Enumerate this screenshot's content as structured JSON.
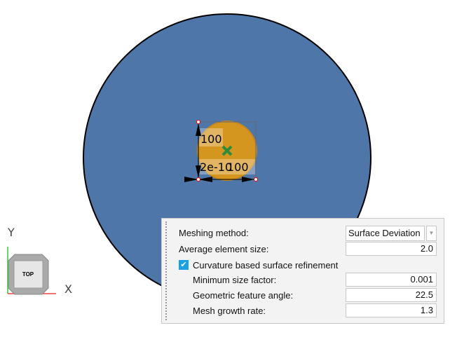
{
  "viewport": {
    "colors": {
      "surface": "#4f76a9",
      "feature": "#d4961f",
      "center_marker": "#2e8b3a"
    },
    "dimensions": {
      "vertical": "100",
      "horizontal": "100",
      "offset": "2e-10"
    },
    "view_cube": {
      "face": "TOP"
    },
    "axes": {
      "x": "X",
      "y": "Y"
    }
  },
  "panel": {
    "meshing_method": {
      "label": "Meshing method:",
      "value": "Surface Deviation"
    },
    "average_element_size": {
      "label": "Average element size:",
      "value": "2.0"
    },
    "curvature_refinement": {
      "label": "Curvature based surface refinement",
      "checked": true
    },
    "minimum_size_factor": {
      "label": "Minimum size factor:",
      "value": "0.001"
    },
    "geometric_feature_angle": {
      "label": "Geometric feature angle:",
      "value": "22.5"
    },
    "mesh_growth_rate": {
      "label": "Mesh growth rate:",
      "value": "1.3"
    }
  }
}
